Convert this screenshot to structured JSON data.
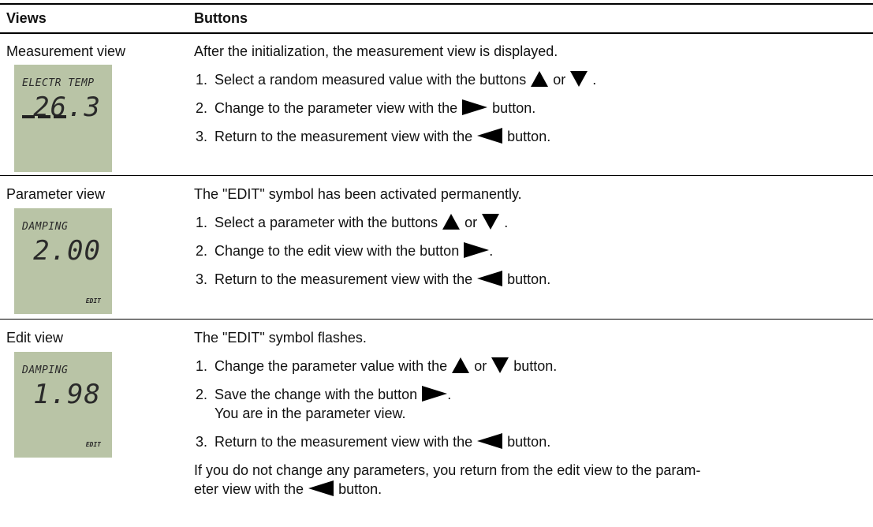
{
  "header": {
    "col1": "Views",
    "col2": "Buttons"
  },
  "rows": [
    {
      "view": "Measurement view",
      "display": {
        "line1": "ELECTR TEMP",
        "value": "26.3"
      },
      "intro": "After the initialization, the measurement view is displayed.",
      "steps": [
        {
          "number": "1.",
          "parts": [
            "Select a random measured value with the buttons",
            "or",
            "."
          ]
        },
        {
          "number": "2.",
          "parts": [
            "Change to the parameter view with the",
            "button."
          ]
        },
        {
          "number": "3.",
          "parts": [
            "Return to the measurement view with the",
            "button."
          ]
        }
      ]
    },
    {
      "view": "Parameter view",
      "display": {
        "line1": "DAMPING",
        "value": "2.00",
        "symbol": "EDIT"
      },
      "intro": "The \"EDIT\" symbol has been activated permanently.",
      "steps": [
        {
          "number": "1.",
          "parts": [
            "Select a parameter with the buttons",
            "or",
            "."
          ]
        },
        {
          "number": "2.",
          "parts": [
            "Change to the edit view with the button",
            "."
          ]
        },
        {
          "number": "3.",
          "parts": [
            "Return to the measurement view with the",
            "button."
          ]
        }
      ]
    },
    {
      "view": "Edit view",
      "display": {
        "line1": "DAMPING",
        "value": "1.98",
        "symbol": "EDIT"
      },
      "intro": "The \"EDIT\" symbol flashes.",
      "steps": [
        {
          "number": "1.",
          "parts": [
            "Change the parameter value with the",
            "or",
            "button."
          ]
        },
        {
          "number": "2.",
          "parts": [
            "Save the change with the button",
            "."
          ],
          "note": "You are in the parameter view."
        },
        {
          "number": "3.",
          "parts": [
            "Return to the measurement view with the",
            "button."
          ]
        }
      ],
      "outro": [
        "If you do not change any parameters, you return from the edit view to the param-",
        "eter view with the",
        "button."
      ]
    }
  ]
}
